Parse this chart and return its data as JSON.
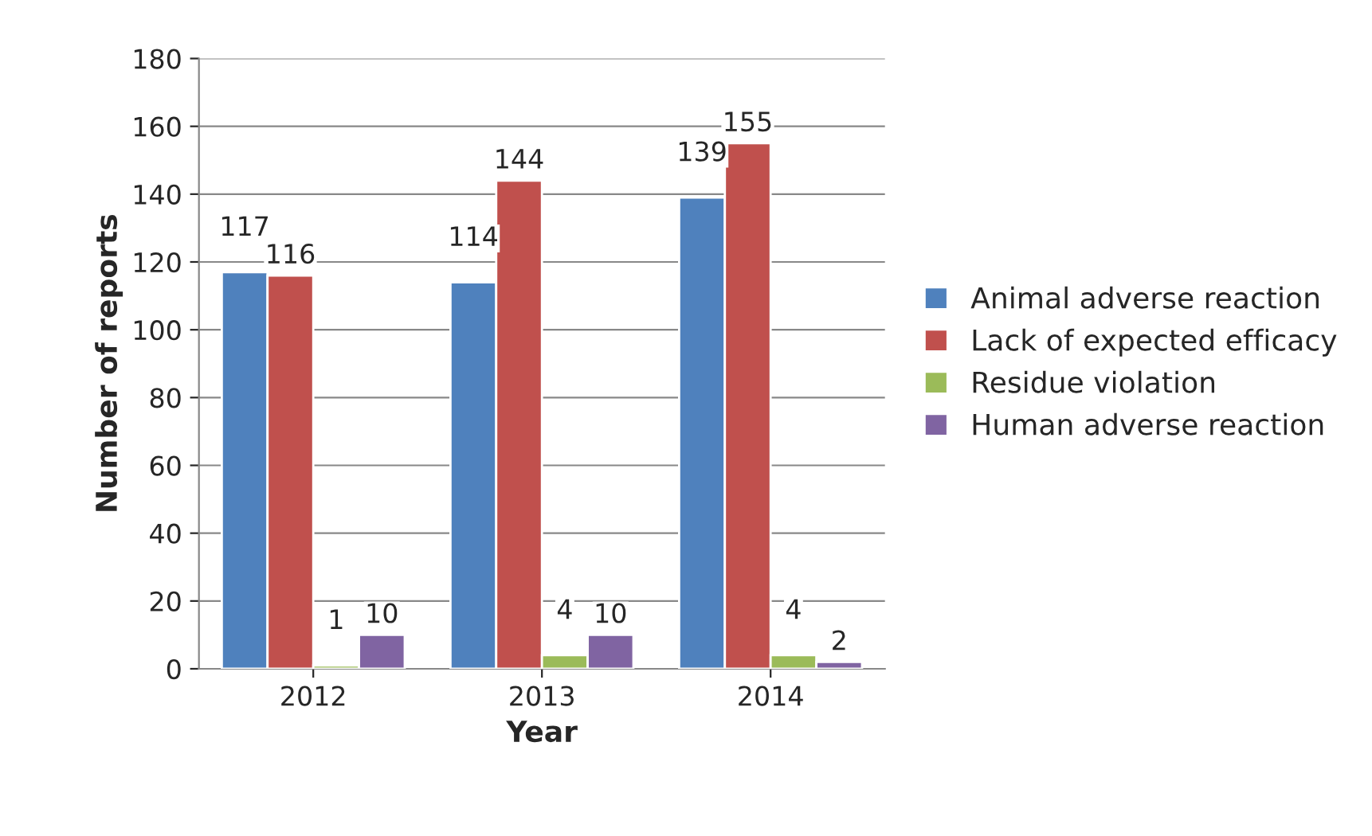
{
  "chart_data": {
    "type": "bar",
    "xlabel": "Year",
    "ylabel": "Number of reports",
    "categories": [
      "2012",
      "2013",
      "2014"
    ],
    "series": [
      {
        "name": "Animal adverse reaction",
        "color": "#4f81bd",
        "values": [
          117,
          114,
          139
        ]
      },
      {
        "name": "Lack of expected efficacy",
        "color": "#c0504d",
        "values": [
          116,
          144,
          155
        ]
      },
      {
        "name": "Residue violation",
        "color": "#9bbb59",
        "values": [
          1,
          4,
          4
        ]
      },
      {
        "name": "Human adverse reaction",
        "color": "#8064a2",
        "values": [
          10,
          10,
          2
        ]
      }
    ],
    "ylim": [
      0,
      180
    ],
    "yticks": [
      0,
      20,
      40,
      60,
      80,
      100,
      120,
      140,
      160,
      180
    ],
    "grid": "y",
    "legend": "right",
    "data_labels": true
  }
}
